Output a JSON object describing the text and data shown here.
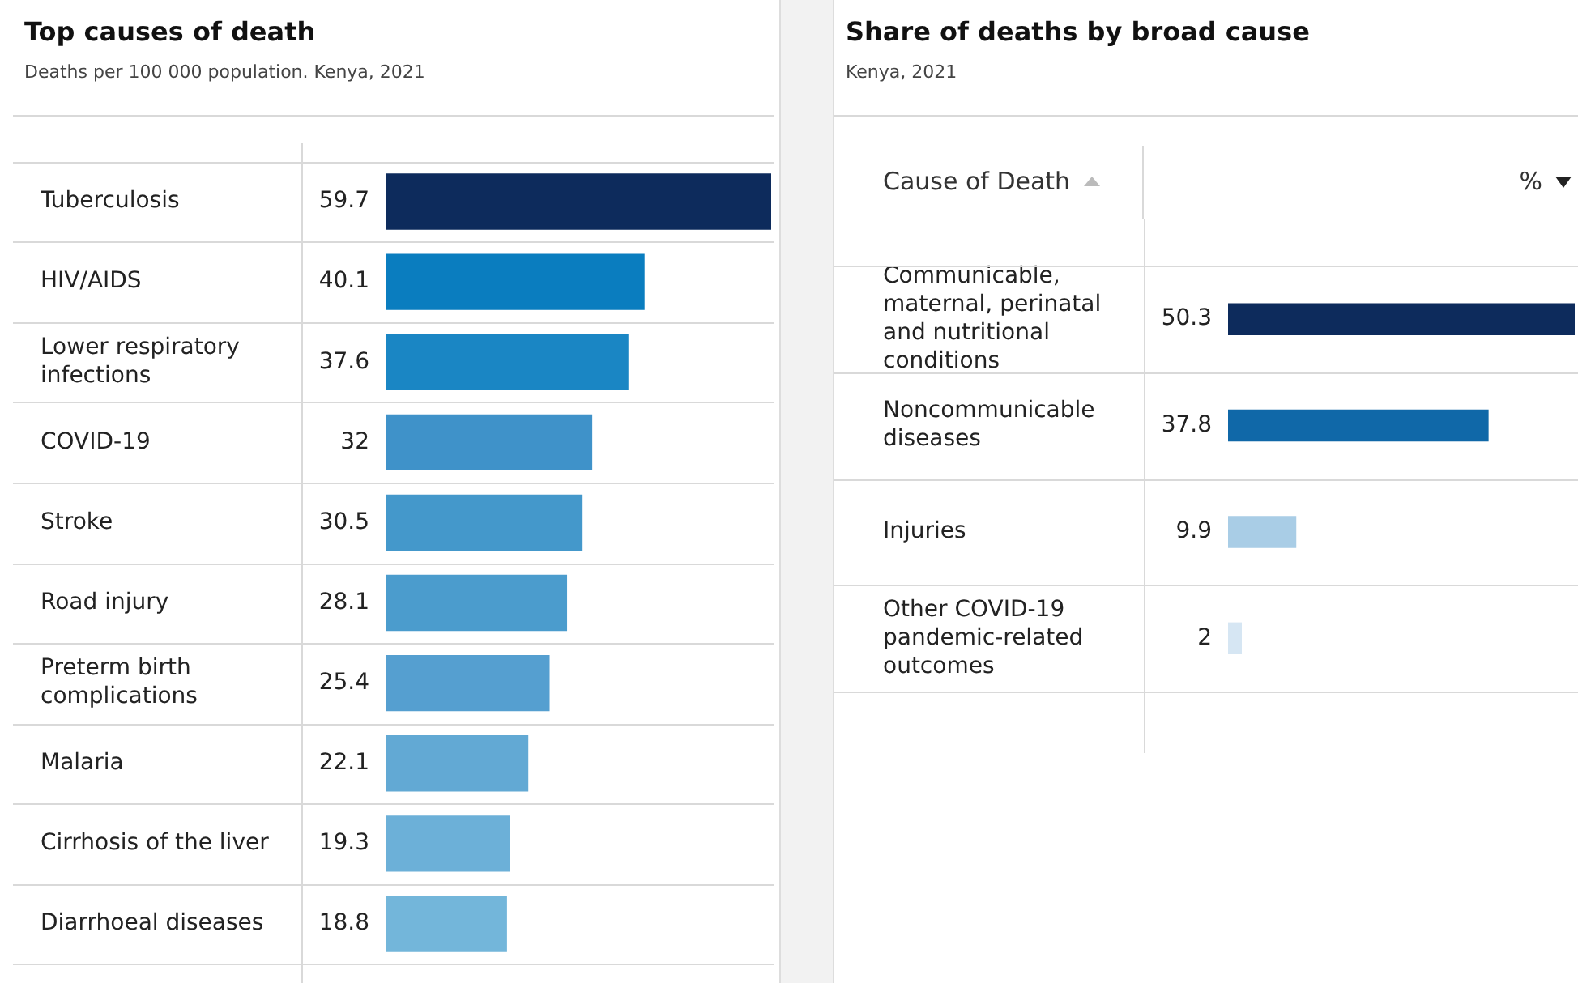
{
  "chart_data": [
    {
      "type": "bar",
      "orientation": "horizontal",
      "title": "Top causes of death",
      "subtitle": "Deaths per 100 000 population. Kenya, 2021",
      "data_labels": true,
      "categories": [
        "Tuberculosis",
        "HIV/AIDS",
        "Lower respiratory infections",
        "COVID-19",
        "Stroke",
        "Road injury",
        "Preterm birth complications",
        "Malaria",
        "Cirrhosis of the liver",
        "Diarrhoeal diseases"
      ],
      "values": [
        59.7,
        40.1,
        37.6,
        32,
        30.5,
        28.1,
        25.4,
        22.1,
        19.3,
        18.8
      ],
      "colors": [
        "#0d2b5c",
        "#0a7dbf",
        "#1a86c4",
        "#3f92c9",
        "#4498cb",
        "#4b9ccd",
        "#559fd0",
        "#62a9d4",
        "#6cb0d8",
        "#73b6da"
      ]
    },
    {
      "type": "bar",
      "orientation": "horizontal",
      "title": "Share of deaths by broad cause",
      "subtitle": "Kenya, 2021",
      "ylabel": "Cause of Death",
      "xlabel": "%",
      "data_labels": true,
      "categories": [
        "Communicable, maternal, perinatal and nutritional conditions",
        "Noncommunicable diseases",
        "Injuries",
        "Other COVID-19 pandemic-related outcomes"
      ],
      "values": [
        50.3,
        37.8,
        9.9,
        2
      ],
      "colors": [
        "#0d2b5c",
        "#1068a8",
        "#a9cde6",
        "#d6e6f3"
      ]
    }
  ]
}
